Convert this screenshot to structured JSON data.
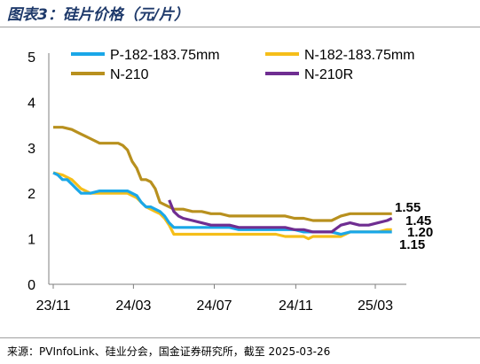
{
  "figure": {
    "title": "图表3：硅片价格（元/片）",
    "source": "来源：PVInfoLink、硅业分会，国金证券研究所，截至 2025-03-26"
  },
  "colors": {
    "P-182-183.75mm": "#1aa7e8",
    "N-182-183.75mm": "#f5be19",
    "N-210": "#b8901e",
    "N-210R": "#6f2d91",
    "title": "#1f3a6b"
  },
  "chart_data": {
    "type": "line",
    "title": "",
    "xlabel": "",
    "ylabel": "",
    "ylim": [
      0,
      5
    ],
    "yticks": [
      "0",
      "1",
      "2",
      "3",
      "4",
      "5"
    ],
    "x_tick_labels": [
      "23/11",
      "24/03",
      "24/07",
      "24/11",
      "25/03"
    ],
    "x_tick_dates": [
      "2023-11-01",
      "2024-03-01",
      "2024-07-01",
      "2024-11-01",
      "2025-03-01"
    ],
    "grid": false,
    "legend_position": "top",
    "series": [
      {
        "name": "P-182-183.75mm",
        "x": [
          "2023-11-01",
          "2023-11-08",
          "2023-11-15",
          "2023-11-22",
          "2023-11-29",
          "2023-12-06",
          "2023-12-13",
          "2023-12-20",
          "2023-12-27",
          "2024-01-10",
          "2024-01-24",
          "2024-02-07",
          "2024-02-21",
          "2024-03-06",
          "2024-03-13",
          "2024-03-20",
          "2024-03-27",
          "2024-04-03",
          "2024-04-10",
          "2024-04-17",
          "2024-04-24",
          "2024-05-01",
          "2024-05-08",
          "2024-05-15",
          "2024-05-29",
          "2024-06-12",
          "2024-06-26",
          "2024-07-10",
          "2024-07-24",
          "2024-08-07",
          "2024-08-21",
          "2024-09-04",
          "2024-09-18",
          "2024-10-02",
          "2024-10-16",
          "2024-10-30",
          "2024-11-13",
          "2024-11-27",
          "2024-12-11",
          "2024-12-25",
          "2025-01-08",
          "2025-01-22",
          "2025-02-05",
          "2025-02-19",
          "2025-03-05",
          "2025-03-19",
          "2025-03-26"
        ],
        "values": [
          2.45,
          2.4,
          2.3,
          2.3,
          2.2,
          2.1,
          2.0,
          2.0,
          2.0,
          2.05,
          2.05,
          2.05,
          2.05,
          1.95,
          1.8,
          1.7,
          1.7,
          1.65,
          1.6,
          1.5,
          1.35,
          1.25,
          1.25,
          1.25,
          1.25,
          1.25,
          1.25,
          1.25,
          1.25,
          1.2,
          1.2,
          1.2,
          1.2,
          1.2,
          1.2,
          1.2,
          1.15,
          1.15,
          1.15,
          1.15,
          1.1,
          1.15,
          1.15,
          1.15,
          1.15,
          1.15,
          1.15
        ]
      },
      {
        "name": "N-182-183.75mm",
        "x": [
          "2023-11-01",
          "2023-11-15",
          "2023-11-29",
          "2023-12-06",
          "2023-12-13",
          "2023-12-20",
          "2023-12-27",
          "2024-01-10",
          "2024-01-24",
          "2024-02-07",
          "2024-02-21",
          "2024-03-06",
          "2024-03-20",
          "2024-04-03",
          "2024-04-10",
          "2024-04-17",
          "2024-04-24",
          "2024-05-01",
          "2024-05-15",
          "2024-05-29",
          "2024-06-12",
          "2024-06-26",
          "2024-07-10",
          "2024-07-24",
          "2024-08-07",
          "2024-08-21",
          "2024-09-04",
          "2024-09-18",
          "2024-10-02",
          "2024-10-16",
          "2024-10-30",
          "2024-11-13",
          "2024-11-20",
          "2024-11-27",
          "2024-12-11",
          "2024-12-25",
          "2025-01-08",
          "2025-01-22",
          "2025-02-05",
          "2025-02-19",
          "2025-03-05",
          "2025-03-19",
          "2025-03-26"
        ],
        "values": [
          2.45,
          2.4,
          2.3,
          2.2,
          2.1,
          2.05,
          2.0,
          2.0,
          2.0,
          2.0,
          2.0,
          1.9,
          1.7,
          1.6,
          1.55,
          1.45,
          1.3,
          1.1,
          1.1,
          1.1,
          1.1,
          1.1,
          1.1,
          1.1,
          1.1,
          1.1,
          1.1,
          1.1,
          1.1,
          1.05,
          1.05,
          1.05,
          1.0,
          1.05,
          1.05,
          1.05,
          1.05,
          1.15,
          1.15,
          1.15,
          1.15,
          1.2,
          1.2
        ]
      },
      {
        "name": "N-210",
        "x": [
          "2023-11-01",
          "2023-11-15",
          "2023-11-29",
          "2023-12-06",
          "2023-12-13",
          "2023-12-20",
          "2023-12-27",
          "2024-01-10",
          "2024-01-24",
          "2024-02-07",
          "2024-02-14",
          "2024-02-21",
          "2024-02-28",
          "2024-03-06",
          "2024-03-13",
          "2024-03-20",
          "2024-03-27",
          "2024-04-03",
          "2024-04-10",
          "2024-04-17",
          "2024-04-24",
          "2024-05-01",
          "2024-05-08",
          "2024-05-15",
          "2024-05-29",
          "2024-06-12",
          "2024-06-26",
          "2024-07-10",
          "2024-07-24",
          "2024-08-07",
          "2024-08-21",
          "2024-09-04",
          "2024-09-18",
          "2024-10-02",
          "2024-10-16",
          "2024-10-30",
          "2024-11-13",
          "2024-11-27",
          "2024-12-11",
          "2024-12-25",
          "2025-01-08",
          "2025-01-22",
          "2025-02-05",
          "2025-02-19",
          "2025-03-05",
          "2025-03-19",
          "2025-03-26"
        ],
        "values": [
          3.45,
          3.45,
          3.4,
          3.35,
          3.3,
          3.25,
          3.2,
          3.1,
          3.1,
          3.1,
          3.05,
          2.95,
          2.7,
          2.55,
          2.3,
          2.3,
          2.25,
          2.1,
          1.8,
          1.75,
          1.7,
          1.65,
          1.65,
          1.65,
          1.6,
          1.6,
          1.55,
          1.55,
          1.5,
          1.5,
          1.5,
          1.5,
          1.5,
          1.5,
          1.5,
          1.45,
          1.45,
          1.4,
          1.4,
          1.4,
          1.5,
          1.55,
          1.55,
          1.55,
          1.55,
          1.55,
          1.55
        ]
      },
      {
        "name": "N-210R",
        "x": [
          "2024-04-24",
          "2024-05-01",
          "2024-05-08",
          "2024-05-15",
          "2024-05-29",
          "2024-06-12",
          "2024-06-26",
          "2024-07-10",
          "2024-07-24",
          "2024-08-07",
          "2024-08-21",
          "2024-09-04",
          "2024-09-18",
          "2024-10-02",
          "2024-10-16",
          "2024-10-30",
          "2024-11-13",
          "2024-11-27",
          "2024-12-11",
          "2024-12-25",
          "2025-01-08",
          "2025-01-22",
          "2025-02-05",
          "2025-02-19",
          "2025-03-05",
          "2025-03-19",
          "2025-03-26"
        ],
        "values": [
          1.85,
          1.6,
          1.5,
          1.45,
          1.4,
          1.35,
          1.3,
          1.3,
          1.3,
          1.25,
          1.25,
          1.25,
          1.25,
          1.25,
          1.25,
          1.2,
          1.2,
          1.15,
          1.15,
          1.15,
          1.3,
          1.35,
          1.3,
          1.3,
          1.35,
          1.4,
          1.45
        ]
      }
    ],
    "end_labels": [
      {
        "series": "N-210",
        "text": "1.55"
      },
      {
        "series": "N-210R",
        "text": "1.45"
      },
      {
        "series": "N-182-183.75mm",
        "text": "1.20"
      },
      {
        "series": "P-182-183.75mm",
        "text": "1.15"
      }
    ]
  }
}
